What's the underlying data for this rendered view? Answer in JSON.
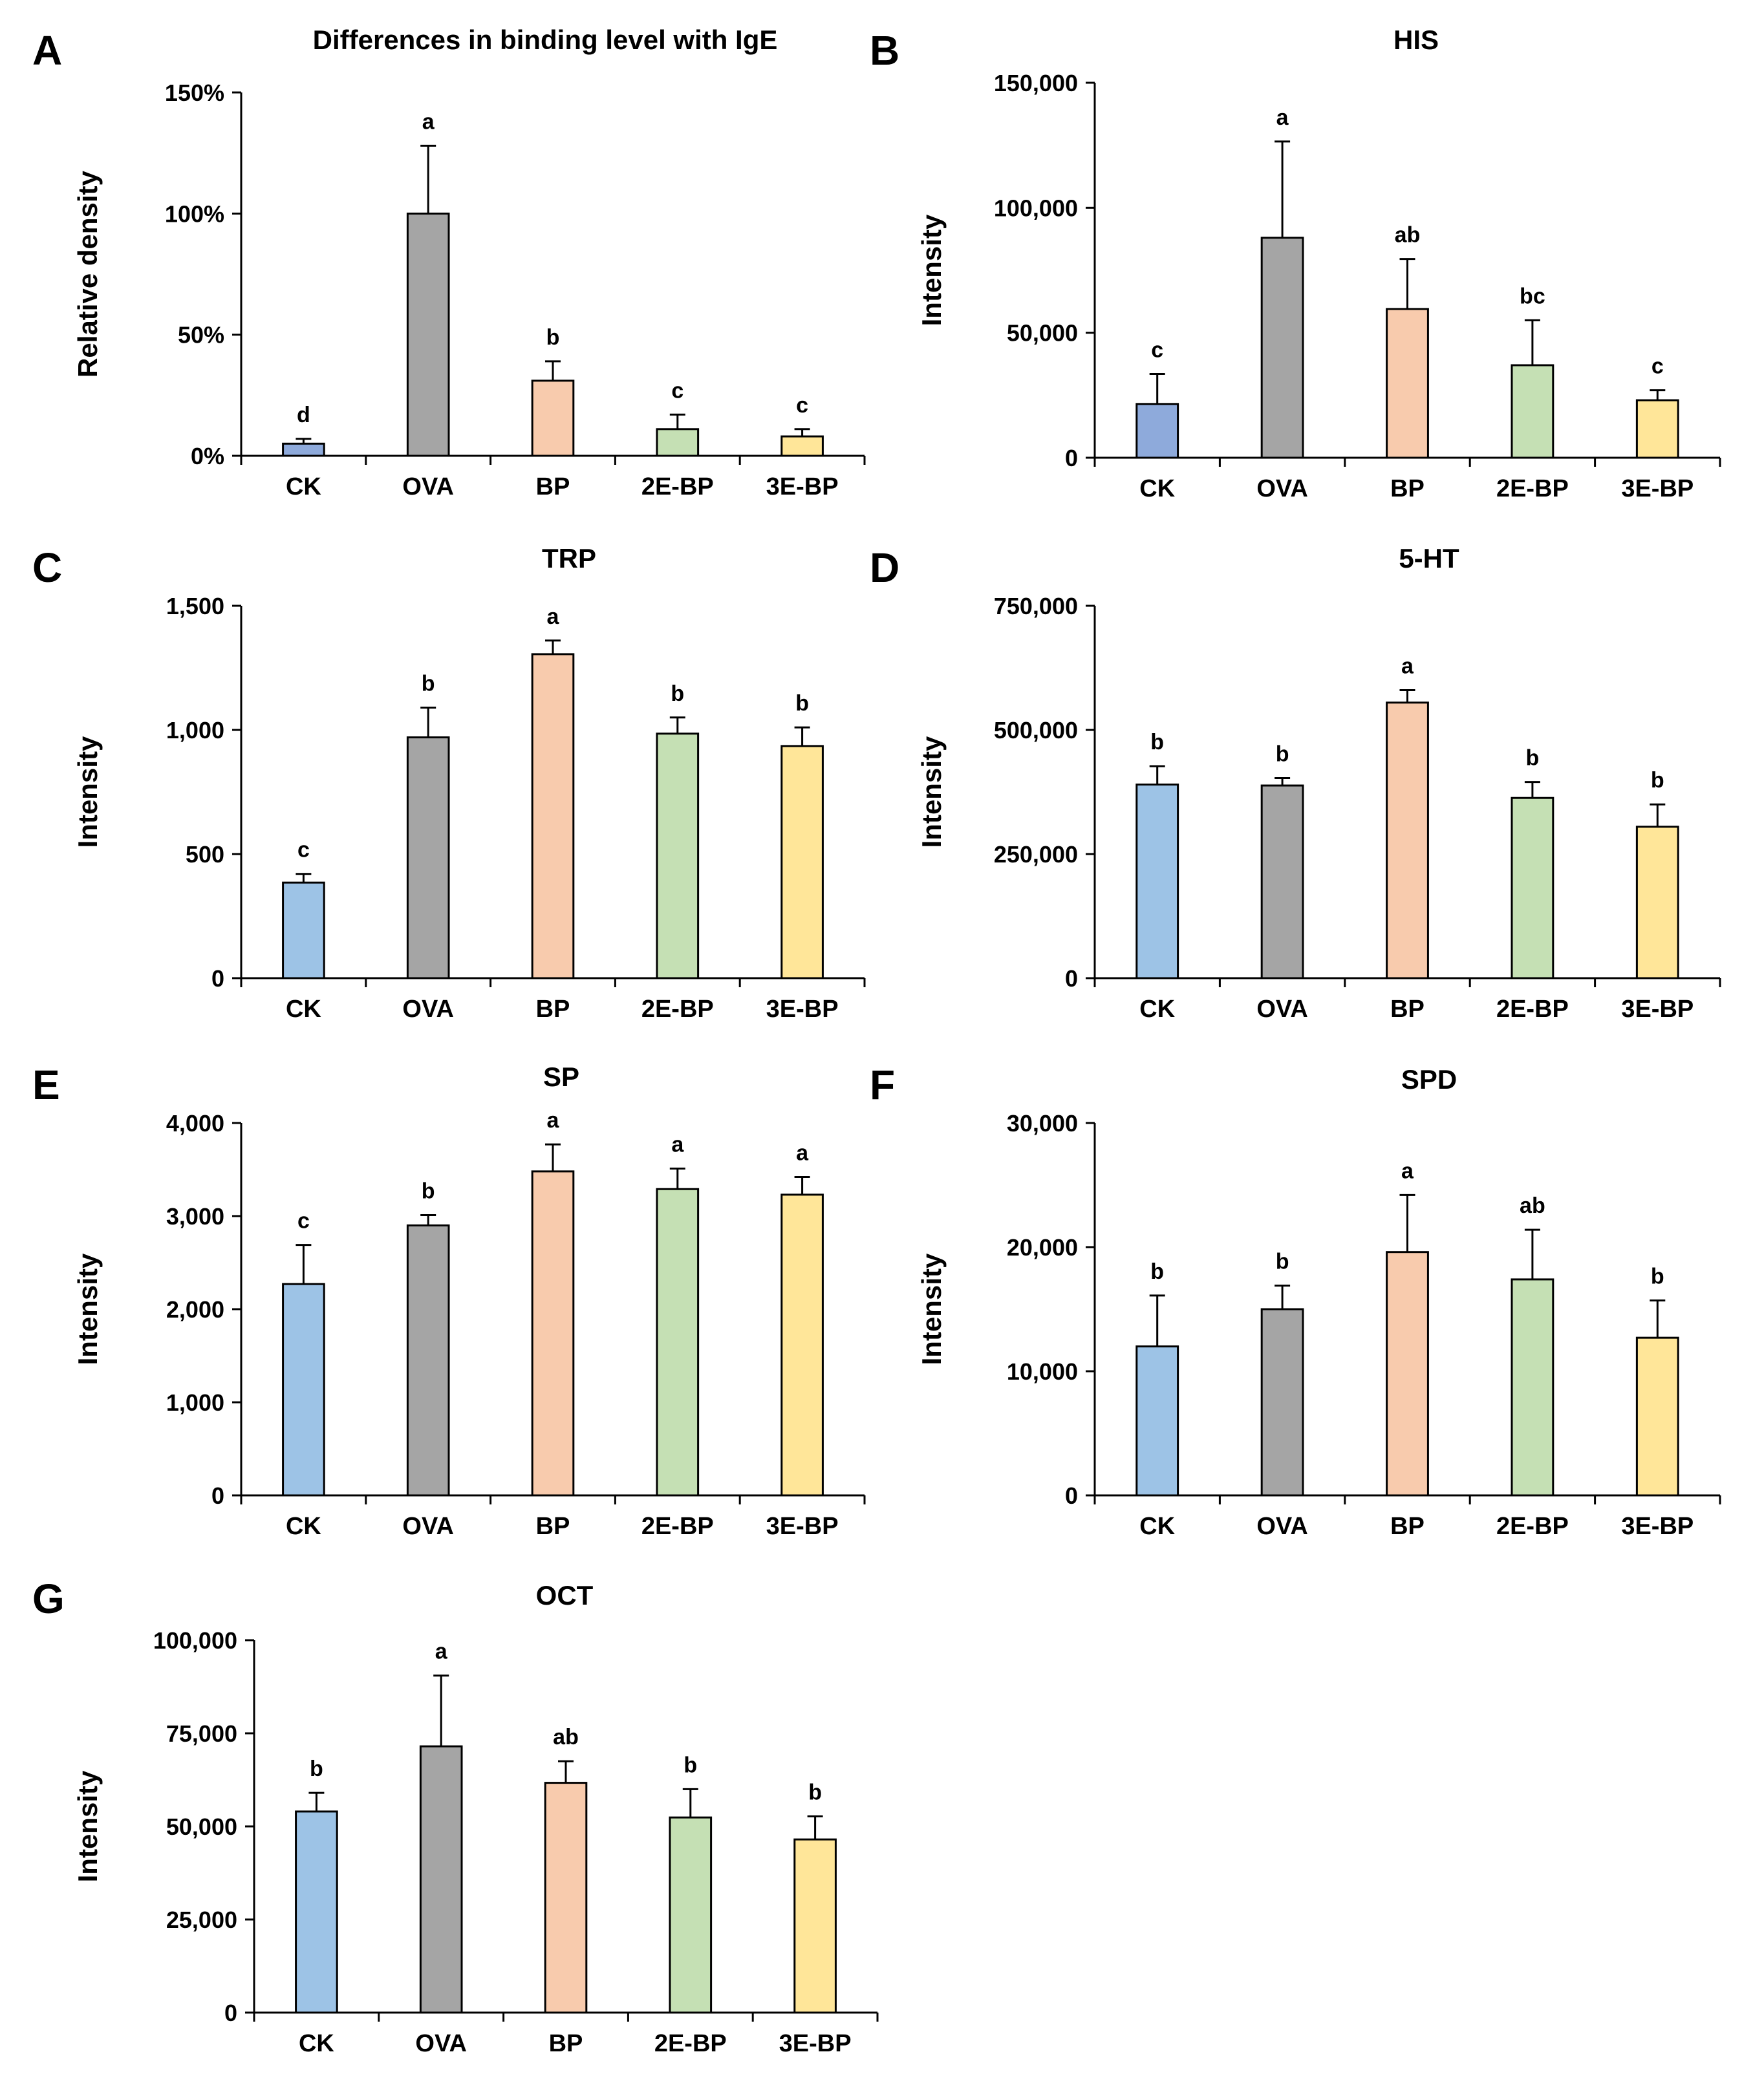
{
  "colors": {
    "CK_dark": "#8eaadb",
    "CK": "#9dc3e6",
    "OVA": "#a5a5a5",
    "BP": "#f8cbad",
    "2E-BP": "#c5e0b4",
    "3E-BP": "#ffe699",
    "edge": "#000000"
  },
  "chart_data": [
    {
      "panel": "A",
      "type": "bar",
      "title": "Differences in binding level with IgE",
      "ylabel": "Relative density",
      "categories": [
        "CK",
        "OVA",
        "BP",
        "2E-BP",
        "3E-BP"
      ],
      "values": [
        5,
        100,
        31,
        11,
        8
      ],
      "errors": [
        2,
        28,
        8,
        6,
        3
      ],
      "significance": [
        "d",
        "a",
        "b",
        "c",
        "c"
      ],
      "ylim": [
        0,
        150
      ],
      "yticks": [
        0,
        50,
        100,
        150
      ],
      "ytick_labels": [
        "0%",
        "50%",
        "100%",
        "150%"
      ]
    },
    {
      "panel": "B",
      "type": "bar",
      "title": "HIS",
      "ylabel": "Intensity",
      "categories": [
        "CK",
        "OVA",
        "BP",
        "2E-BP",
        "3E-BP"
      ],
      "values": [
        21500,
        88000,
        59500,
        37000,
        23000
      ],
      "errors": [
        12000,
        38500,
        20000,
        18000,
        4000
      ],
      "significance": [
        "c",
        "a",
        "ab",
        "bc",
        "c"
      ],
      "ylim": [
        0,
        150000
      ],
      "yticks": [
        0,
        50000,
        100000,
        150000
      ],
      "ytick_labels": [
        "0",
        "50,000",
        "100,000",
        "150,000"
      ]
    },
    {
      "panel": "C",
      "type": "bar",
      "title": "TRP",
      "ylabel": "Intensity",
      "categories": [
        "CK",
        "OVA",
        "BP",
        "2E-BP",
        "3E-BP"
      ],
      "values": [
        385,
        970,
        1305,
        985,
        935
      ],
      "errors": [
        35,
        120,
        55,
        65,
        75
      ],
      "significance": [
        "c",
        "b",
        "a",
        "b",
        "b"
      ],
      "ylim": [
        0,
        1500
      ],
      "yticks": [
        0,
        500,
        1000,
        1500
      ],
      "ytick_labels": [
        "0",
        "500",
        "1,000",
        "1,500"
      ]
    },
    {
      "panel": "D",
      "type": "bar",
      "title": "5-HT",
      "ylabel": "Intensity",
      "categories": [
        "CK",
        "OVA",
        "BP",
        "2E-BP",
        "3E-BP"
      ],
      "values": [
        390000,
        388000,
        555000,
        363000,
        305000
      ],
      "errors": [
        37000,
        15000,
        25000,
        32000,
        45000
      ],
      "significance": [
        "b",
        "b",
        "a",
        "b",
        "b"
      ],
      "ylim": [
        0,
        750000
      ],
      "yticks": [
        0,
        250000,
        500000,
        750000
      ],
      "ytick_labels": [
        "0",
        "250,000",
        "500,000",
        "750,000"
      ]
    },
    {
      "panel": "E",
      "type": "bar",
      "title": "SP",
      "ylabel": "Intensity",
      "categories": [
        "CK",
        "OVA",
        "BP",
        "2E-BP",
        "3E-BP"
      ],
      "values": [
        2270,
        2900,
        3480,
        3290,
        3230
      ],
      "errors": [
        420,
        110,
        290,
        220,
        190
      ],
      "significance": [
        "c",
        "b",
        "a",
        "a",
        "a"
      ],
      "ylim": [
        0,
        4000
      ],
      "yticks": [
        0,
        1000,
        2000,
        3000,
        4000
      ],
      "ytick_labels": [
        "0",
        "1,000",
        "2,000",
        "3,000",
        "4,000"
      ]
    },
    {
      "panel": "F",
      "type": "bar",
      "title": "SPD",
      "ylabel": "Intensity",
      "categories": [
        "CK",
        "OVA",
        "BP",
        "2E-BP",
        "3E-BP"
      ],
      "values": [
        12000,
        15000,
        19600,
        17400,
        12700
      ],
      "errors": [
        4100,
        1900,
        4600,
        4000,
        3000
      ],
      "significance": [
        "b",
        "b",
        "a",
        "ab",
        "b"
      ],
      "ylim": [
        0,
        30000
      ],
      "yticks": [
        0,
        10000,
        20000,
        30000
      ],
      "ytick_labels": [
        "0",
        "10,000",
        "20,000",
        "30,000"
      ]
    },
    {
      "panel": "G",
      "type": "bar",
      "title": "OCT",
      "ylabel": "Intensity",
      "categories": [
        "CK",
        "OVA",
        "BP",
        "2E-BP",
        "3E-BP"
      ],
      "values": [
        54000,
        71500,
        61700,
        52400,
        46500
      ],
      "errors": [
        5000,
        19000,
        5800,
        7600,
        6200
      ],
      "significance": [
        "b",
        "a",
        "ab",
        "b",
        "b"
      ],
      "ylim": [
        0,
        100000
      ],
      "yticks": [
        0,
        25000,
        50000,
        75000,
        100000
      ],
      "ytick_labels": [
        "0",
        "25,000",
        "50,000",
        "75,000",
        "100,000"
      ]
    }
  ]
}
